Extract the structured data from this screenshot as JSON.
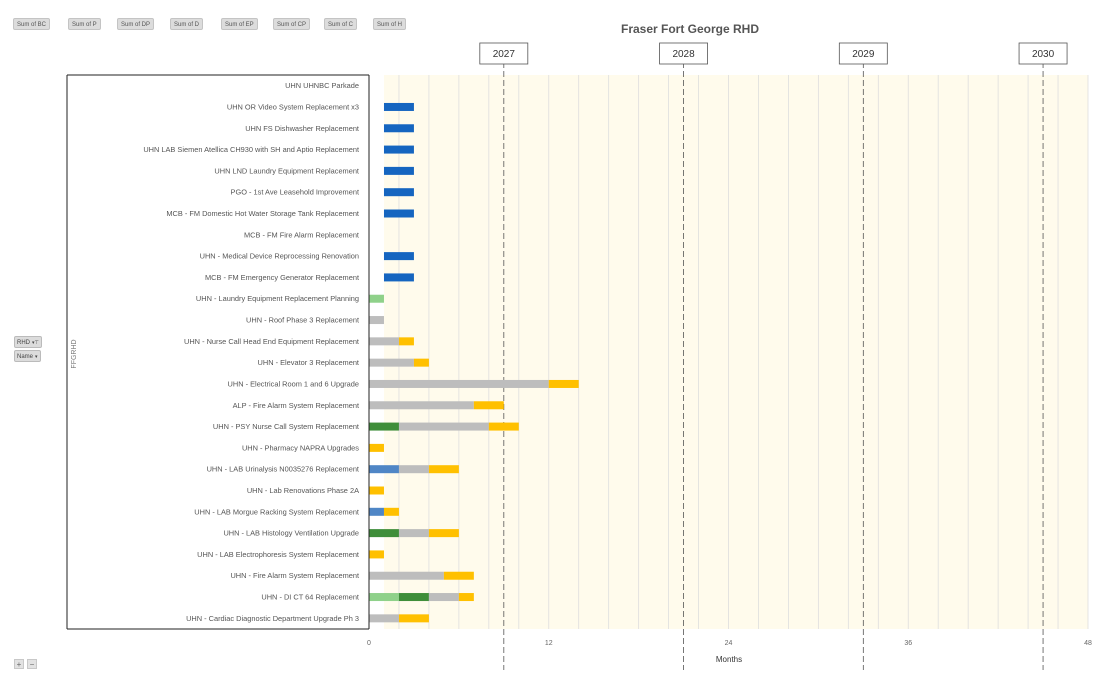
{
  "field_buttons": [
    "Sum of BC",
    "Sum of P",
    "Sum of DP",
    "Sum of D",
    "Sum of EP",
    "Sum of CP",
    "Sum of C",
    "Sum of H"
  ],
  "row_field": {
    "rhd_label": "RHD",
    "name_label": "Name",
    "axis_label": "FFGRHD"
  },
  "zoom": {
    "plus": "+",
    "minus": "−"
  },
  "colors": {
    "BC": "#1565C0",
    "P": "#8FD18A",
    "DP": "#3F8E3A",
    "D": "#4F86C6",
    "EP": "#BDBDBD",
    "CP": "#F2C037",
    "C": "#FFC000",
    "H": "#BDBDBD",
    "band": "#FFFBEC"
  },
  "chart_data": {
    "type": "bar",
    "orientation": "horizontal-stacked",
    "title": "Fraser Fort George RHD",
    "xlabel": "Months",
    "ylabel": "FFGRHD",
    "xlim": [
      0,
      48
    ],
    "xticks": [
      0,
      12,
      24,
      36,
      48
    ],
    "year_markers": [
      {
        "label": "2027",
        "x": 9
      },
      {
        "label": "2028",
        "x": 21
      },
      {
        "label": "2029",
        "x": 33
      },
      {
        "label": "2030",
        "x": 45
      }
    ],
    "grid": true,
    "rows": [
      {
        "name": "UHN UHNBC Parkade",
        "segments": []
      },
      {
        "name": "UHN OR Video System Replacement x3",
        "segments": [
          {
            "start": 1,
            "length": 2,
            "type": "BC"
          }
        ]
      },
      {
        "name": "UHN FS Dishwasher Replacement",
        "segments": [
          {
            "start": 1,
            "length": 2,
            "type": "BC"
          }
        ]
      },
      {
        "name": "UHN LAB Siemen Atellica CH930 with SH and Aptio Replacement",
        "segments": [
          {
            "start": 1,
            "length": 2,
            "type": "BC"
          }
        ]
      },
      {
        "name": "UHN LND Laundry Equipment Replacement",
        "segments": [
          {
            "start": 1,
            "length": 2,
            "type": "BC"
          }
        ]
      },
      {
        "name": "PGO - 1st Ave Leasehold Improvement",
        "segments": [
          {
            "start": 1,
            "length": 2,
            "type": "BC"
          }
        ]
      },
      {
        "name": "MCB - FM Domestic Hot Water Storage Tank Replacement",
        "segments": [
          {
            "start": 1,
            "length": 2,
            "type": "BC"
          }
        ]
      },
      {
        "name": "MCB - FM Fire Alarm Replacement",
        "segments": []
      },
      {
        "name": "UHN - Medical Device Reprocessing Renovation",
        "segments": [
          {
            "start": 1,
            "length": 2,
            "type": "BC"
          }
        ]
      },
      {
        "name": "MCB - FM Emergency Generator Replacement",
        "segments": [
          {
            "start": 1,
            "length": 2,
            "type": "BC"
          }
        ]
      },
      {
        "name": "UHN - Laundry Equipment Replacement Planning",
        "segments": [
          {
            "start": 0,
            "length": 1,
            "type": "P"
          }
        ]
      },
      {
        "name": "UHN - Roof Phase 3 Replacement",
        "segments": [
          {
            "start": 0,
            "length": 1,
            "type": "EP"
          }
        ]
      },
      {
        "name": "UHN - Nurse Call Head End Equipment Replacement",
        "segments": [
          {
            "start": 0,
            "length": 2,
            "type": "EP"
          },
          {
            "start": 2,
            "length": 1,
            "type": "C"
          }
        ]
      },
      {
        "name": "UHN - Elevator 3 Replacement",
        "segments": [
          {
            "start": 0,
            "length": 3,
            "type": "EP"
          },
          {
            "start": 3,
            "length": 1,
            "type": "C"
          }
        ]
      },
      {
        "name": "UHN - Electrical Room 1 and 6 Upgrade",
        "segments": [
          {
            "start": 0,
            "length": 12,
            "type": "EP"
          },
          {
            "start": 12,
            "length": 2,
            "type": "C"
          }
        ]
      },
      {
        "name": "ALP - Fire Alarm System Replacement",
        "segments": [
          {
            "start": 0,
            "length": 7,
            "type": "EP"
          },
          {
            "start": 7,
            "length": 2,
            "type": "C"
          }
        ]
      },
      {
        "name": "UHN - PSY Nurse Call System Replacement",
        "segments": [
          {
            "start": 0,
            "length": 2,
            "type": "DP"
          },
          {
            "start": 2,
            "length": 6,
            "type": "EP"
          },
          {
            "start": 8,
            "length": 2,
            "type": "C"
          }
        ]
      },
      {
        "name": "UHN - Pharmacy NAPRA Upgrades",
        "segments": [
          {
            "start": 0,
            "length": 1,
            "type": "C"
          }
        ]
      },
      {
        "name": "UHN - LAB Urinalysis N0035276 Replacement",
        "segments": [
          {
            "start": 0,
            "length": 2,
            "type": "D"
          },
          {
            "start": 2,
            "length": 2,
            "type": "EP"
          },
          {
            "start": 4,
            "length": 2,
            "type": "C"
          }
        ]
      },
      {
        "name": "UHN - Lab Renovations Phase 2A",
        "segments": [
          {
            "start": 0,
            "length": 1,
            "type": "C"
          }
        ]
      },
      {
        "name": "UHN - LAB Morgue Racking System Replacement",
        "segments": [
          {
            "start": 0,
            "length": 1,
            "type": "D"
          },
          {
            "start": 1,
            "length": 1,
            "type": "C"
          }
        ]
      },
      {
        "name": "UHN - LAB Histology Ventilation Upgrade",
        "segments": [
          {
            "start": 0,
            "length": 2,
            "type": "DP"
          },
          {
            "start": 2,
            "length": 2,
            "type": "EP"
          },
          {
            "start": 4,
            "length": 2,
            "type": "C"
          }
        ]
      },
      {
        "name": "UHN - LAB Electrophoresis System Replacement",
        "segments": [
          {
            "start": 0,
            "length": 1,
            "type": "C"
          }
        ]
      },
      {
        "name": "UHN - Fire Alarm System Replacement",
        "segments": [
          {
            "start": 0,
            "length": 5,
            "type": "EP"
          },
          {
            "start": 5,
            "length": 2,
            "type": "C"
          }
        ]
      },
      {
        "name": "UHN - DI CT 64 Replacement",
        "segments": [
          {
            "start": 0,
            "length": 2,
            "type": "P"
          },
          {
            "start": 2,
            "length": 2,
            "type": "DP"
          },
          {
            "start": 4,
            "length": 2,
            "type": "EP"
          },
          {
            "start": 6,
            "length": 1,
            "type": "C"
          }
        ]
      },
      {
        "name": "UHN - Cardiac Diagnostic Department Upgrade Ph 3",
        "segments": [
          {
            "start": 0,
            "length": 2,
            "type": "EP"
          },
          {
            "start": 2,
            "length": 2,
            "type": "C"
          }
        ]
      }
    ]
  }
}
